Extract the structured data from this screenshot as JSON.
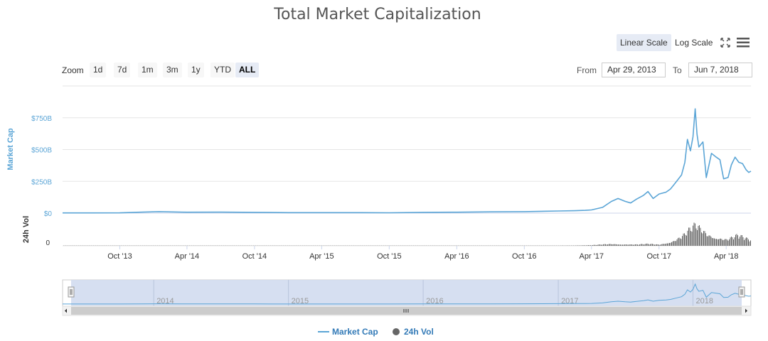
{
  "header": {
    "title": "Total Market Capitalization",
    "linear_label": "Linear Scale",
    "log_label": "Log Scale"
  },
  "toolbar": {
    "zoom_label": "Zoom",
    "zoom_buttons": [
      "1d",
      "7d",
      "1m",
      "3m",
      "1y",
      "YTD",
      "ALL"
    ],
    "zoom_selected": "ALL",
    "from_label": "From",
    "from_value": "Apr 29, 2013",
    "to_label": "To",
    "to_value": "Jun 7, 2018"
  },
  "legend": {
    "market_cap": "Market Cap",
    "volume": "24h Vol"
  },
  "colors": {
    "market_cap": "#5ba5d6",
    "volume": "#666666",
    "axis_label": "#5ba5d6",
    "navigator_fill": "#d2dcef"
  },
  "icons": {
    "fullscreen": "fullscreen-icon",
    "menu": "hamburger-menu-icon"
  },
  "chart_data": {
    "type": "line",
    "title": "Total Market Capitalization",
    "x_type": "date",
    "x_range": [
      "2013-04-29",
      "2018-06-07"
    ],
    "ylabel": "Market Cap",
    "ylabel2": "24h Vol",
    "y_ticks": [
      "$0",
      "$250B",
      "$500B",
      "$750B"
    ],
    "y_tick_values": [
      0,
      250,
      500,
      750
    ],
    "y_unit": "billion USD",
    "y2_ticks": [
      "0"
    ],
    "x_tick_labels": [
      "Oct '13",
      "Apr '14",
      "Oct '14",
      "Apr '15",
      "Oct '15",
      "Apr '16",
      "Oct '16",
      "Apr '17",
      "Oct '17",
      "Apr '18"
    ],
    "navigator_labels": [
      "2014",
      "2015",
      "2016",
      "2017",
      "2018"
    ],
    "series": [
      {
        "name": "Market Cap",
        "x": [
          "2013-04-29",
          "2013-10-01",
          "2013-12-01",
          "2014-01-15",
          "2014-04-01",
          "2014-07-01",
          "2014-10-01",
          "2015-01-01",
          "2015-04-01",
          "2015-07-01",
          "2015-10-01",
          "2016-01-01",
          "2016-04-01",
          "2016-07-01",
          "2016-10-01",
          "2017-01-01",
          "2017-02-15",
          "2017-03-15",
          "2017-04-01",
          "2017-05-01",
          "2017-05-25",
          "2017-06-12",
          "2017-07-01",
          "2017-07-16",
          "2017-08-01",
          "2017-08-20",
          "2017-09-01",
          "2017-09-15",
          "2017-10-01",
          "2017-10-20",
          "2017-11-01",
          "2017-11-15",
          "2017-12-01",
          "2017-12-10",
          "2017-12-17",
          "2017-12-25",
          "2018-01-01",
          "2018-01-07",
          "2018-01-12",
          "2018-01-17",
          "2018-01-28",
          "2018-02-06",
          "2018-02-20",
          "2018-03-05",
          "2018-03-15",
          "2018-03-25",
          "2018-04-06",
          "2018-04-15",
          "2018-04-25",
          "2018-05-05",
          "2018-05-15",
          "2018-05-25",
          "2018-06-01",
          "2018-06-07"
        ],
        "y": [
          1.5,
          2,
          8,
          12,
          7,
          8,
          6,
          4,
          4,
          4,
          3,
          6,
          7,
          10,
          12,
          17,
          19,
          22,
          25,
          45,
          92,
          115,
          93,
          80,
          110,
          140,
          170,
          115,
          150,
          165,
          190,
          240,
          300,
          400,
          580,
          490,
          600,
          820,
          620,
          520,
          560,
          280,
          470,
          440,
          420,
          270,
          280,
          380,
          440,
          400,
          390,
          340,
          320,
          330
        ]
      },
      {
        "name": "24h Vol",
        "x": [
          "2013-04-29",
          "2016-12-31",
          "2017-04-01",
          "2017-05-25",
          "2017-08-01",
          "2017-09-01",
          "2017-10-01",
          "2017-11-01",
          "2017-12-01",
          "2017-12-20",
          "2018-01-07",
          "2018-02-06",
          "2018-03-01",
          "2018-04-01",
          "2018-05-01",
          "2018-06-07"
        ],
        "y": [
          0.1,
          0.3,
          1,
          3,
          2,
          3,
          2,
          7,
          15,
          24,
          32,
          20,
          16,
          10,
          16,
          9
        ]
      }
    ],
    "grid": true,
    "legend_position": "bottom-center"
  }
}
